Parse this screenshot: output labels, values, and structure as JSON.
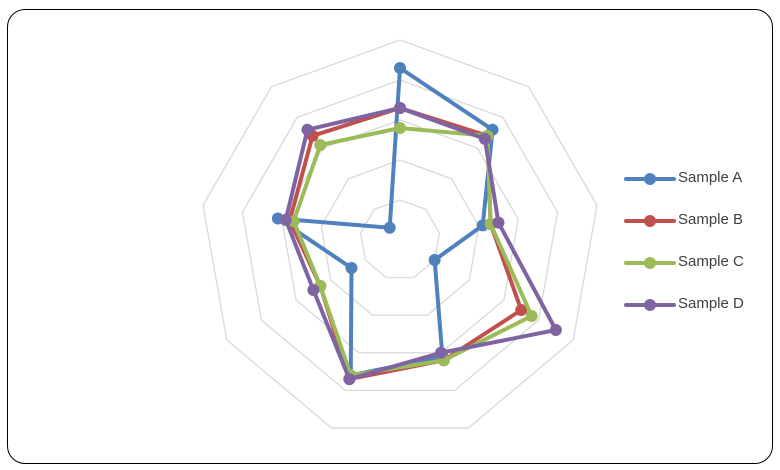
{
  "chart_data": {
    "type": "radar",
    "title": "",
    "axes_count": 9,
    "range": [
      0,
      5
    ],
    "gridlines": 5,
    "grid": true,
    "legend_position": "right",
    "series": [
      {
        "name": "Sample A",
        "color": "#4f81bd",
        "values": [
          4.3,
          3.6,
          2.1,
          1.0,
          3.1,
          3.6,
          1.4,
          3.1,
          0.4
        ]
      },
      {
        "name": "Sample B",
        "color": "#c0504d",
        "values": [
          3.3,
          3.4,
          2.3,
          3.5,
          3.2,
          3.7,
          2.3,
          2.8,
          3.4
        ]
      },
      {
        "name": "Sample C",
        "color": "#9bbb59",
        "values": [
          2.8,
          3.4,
          2.3,
          3.8,
          3.2,
          3.6,
          2.3,
          2.7,
          3.1
        ]
      },
      {
        "name": "Sample D",
        "color": "#8064a2",
        "values": [
          3.3,
          3.3,
          2.5,
          4.5,
          3.0,
          3.7,
          2.5,
          2.9,
          3.6
        ]
      }
    ]
  },
  "legend": {
    "items": [
      {
        "label": "Sample A",
        "color": "#4f81bd"
      },
      {
        "label": "Sample B",
        "color": "#c0504d"
      },
      {
        "label": "Sample C",
        "color": "#9bbb59"
      },
      {
        "label": "Sample D",
        "color": "#8064a2"
      }
    ]
  }
}
